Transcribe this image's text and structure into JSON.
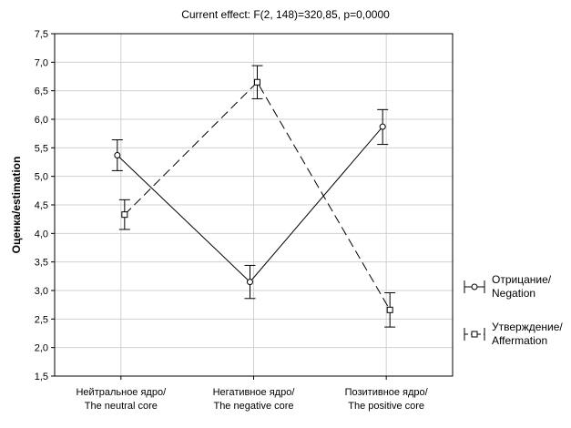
{
  "chart_data": {
    "type": "line",
    "title": "Current effect: F(2, 148)=320,85, p=0,0000",
    "ylabel": "Оценка/estimation",
    "xlabel": "",
    "ylim": [
      1.5,
      7.5
    ],
    "yticks": [
      "1,5",
      "2,0",
      "2,5",
      "3,0",
      "3,5",
      "4,0",
      "4,5",
      "5,0",
      "5,5",
      "6,0",
      "6,5",
      "7,0",
      "7,5"
    ],
    "categories": [
      [
        "Нейтральное ядро/",
        "The neutral core"
      ],
      [
        "Негативное ядро/",
        "The negative core"
      ],
      [
        "Позитивное ядро/",
        "The positive core"
      ]
    ],
    "grid": true,
    "legend_position": "right",
    "series": [
      {
        "name": "Отрицание/\nNegation",
        "marker": "circle",
        "line": "solid",
        "values": [
          5.37,
          3.15,
          5.87
        ],
        "err_low": [
          5.1,
          2.86,
          5.56
        ],
        "err_high": [
          5.64,
          3.44,
          6.17
        ]
      },
      {
        "name": "Утверждение/\nAffermation",
        "marker": "square",
        "line": "dashed",
        "values": [
          4.33,
          6.65,
          2.66
        ],
        "err_low": [
          4.07,
          6.36,
          2.36
        ],
        "err_high": [
          4.59,
          6.94,
          2.96
        ]
      }
    ]
  }
}
